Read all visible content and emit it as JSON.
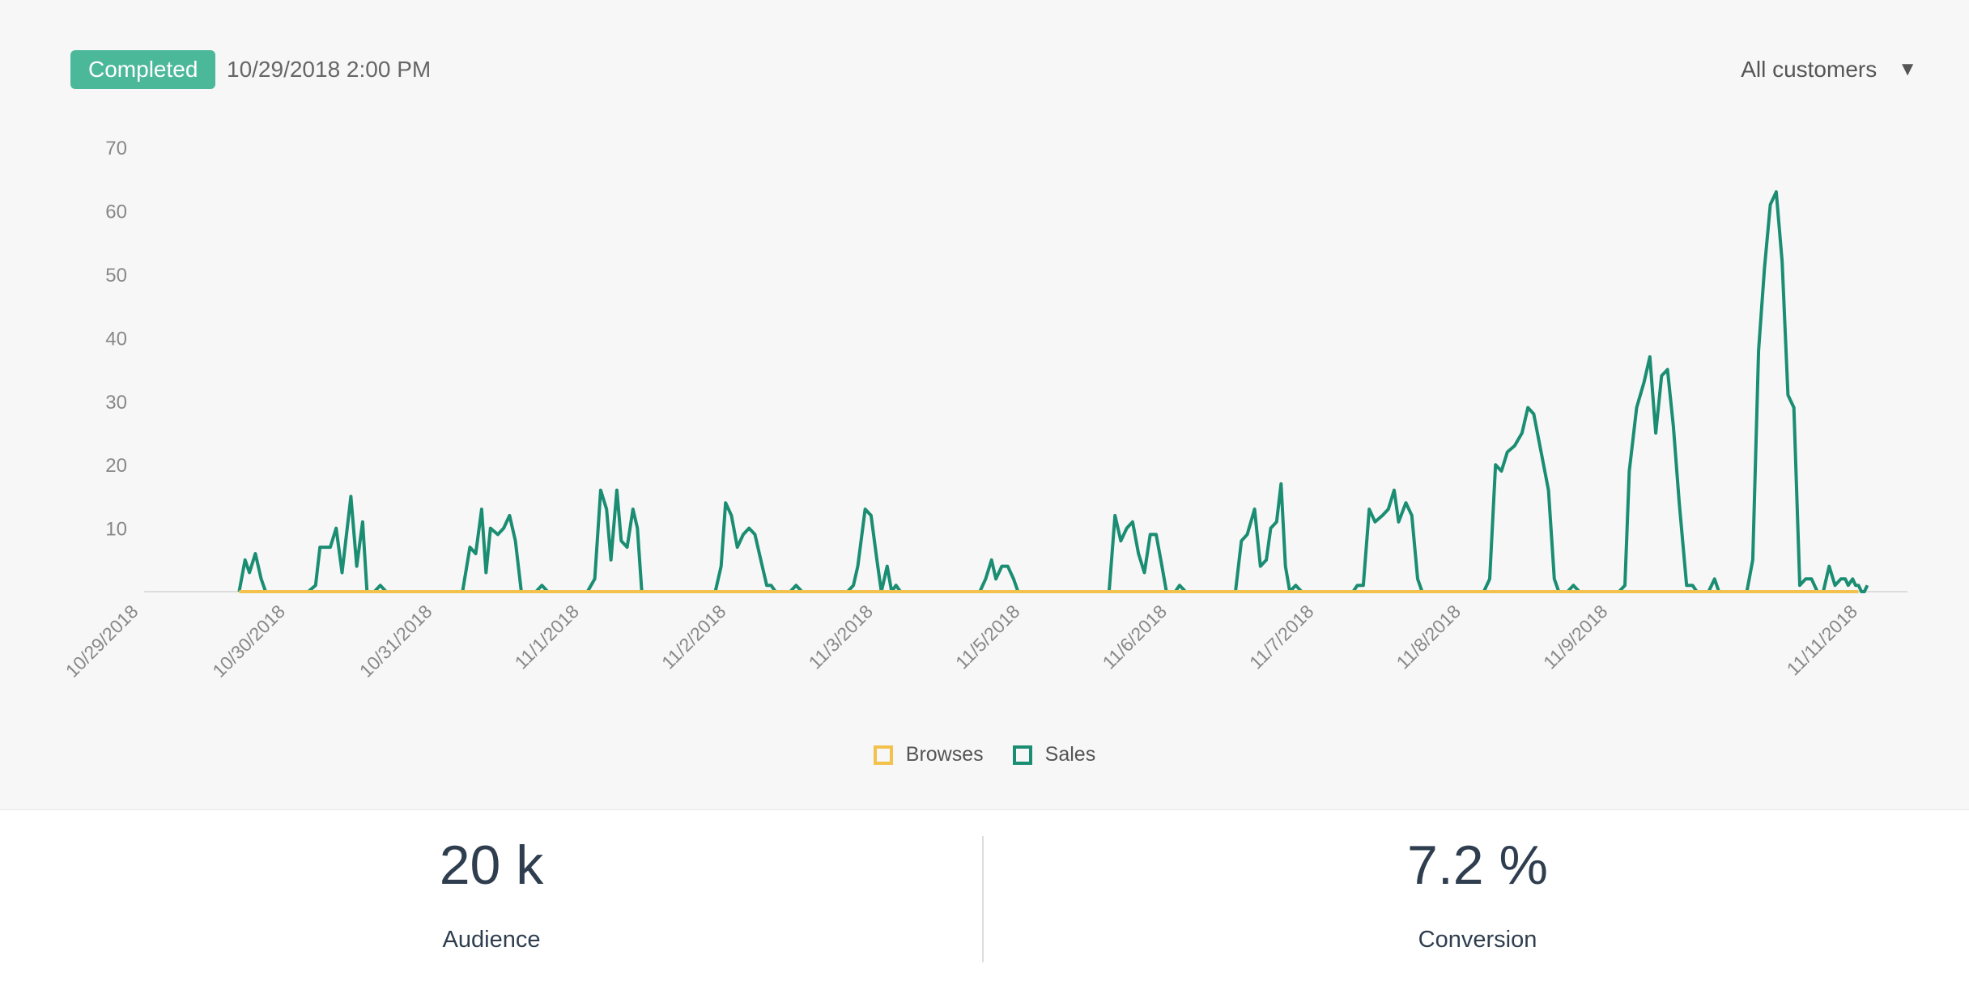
{
  "header": {
    "status": "Completed",
    "timestamp": "10/29/2018 2:00 PM",
    "filter_label": "All customers",
    "filter_caret": "▼"
  },
  "colors": {
    "badge": "#4cb89a",
    "sales": "#1a8d72",
    "browses": "#f2c14e",
    "axis_text": "#888888"
  },
  "chart_data": {
    "type": "line",
    "title": "",
    "xlabel": "",
    "ylabel": "",
    "ylim": [
      0,
      70
    ],
    "yticks": [
      10,
      20,
      30,
      40,
      50,
      60,
      70
    ],
    "x_tick_labels": [
      "10/29/2018",
      "10/30/2018",
      "10/31/2018",
      "11/1/2018",
      "11/2/2018",
      "11/3/2018",
      "11/5/2018",
      "11/6/2018",
      "11/7/2018",
      "11/8/2018",
      "11/9/2018",
      "11/11/2018"
    ],
    "x_tick_positions": [
      0,
      1,
      2,
      3,
      4,
      5,
      6,
      7,
      8,
      9,
      10,
      11.7
    ],
    "grid": false,
    "legend_placement": "bottom-center",
    "series": [
      {
        "name": "Browses",
        "color": "#f2c14e",
        "points": [
          [
            0.68,
            0
          ],
          [
            11.7,
            0
          ]
        ]
      },
      {
        "name": "Sales",
        "color": "#1a8d72",
        "points": [
          [
            0.68,
            0
          ],
          [
            0.72,
            5
          ],
          [
            0.75,
            3
          ],
          [
            0.79,
            6
          ],
          [
            0.83,
            2
          ],
          [
            0.86,
            0
          ],
          [
            1.15,
            0
          ],
          [
            1.2,
            1
          ],
          [
            1.23,
            7
          ],
          [
            1.3,
            7
          ],
          [
            1.34,
            10
          ],
          [
            1.38,
            3
          ],
          [
            1.44,
            15
          ],
          [
            1.48,
            4
          ],
          [
            1.52,
            11
          ],
          [
            1.55,
            0
          ],
          [
            1.6,
            0
          ],
          [
            1.64,
            1
          ],
          [
            1.68,
            0
          ],
          [
            2.2,
            0
          ],
          [
            2.25,
            7
          ],
          [
            2.29,
            6
          ],
          [
            2.33,
            13
          ],
          [
            2.36,
            3
          ],
          [
            2.39,
            10
          ],
          [
            2.44,
            9
          ],
          [
            2.48,
            10
          ],
          [
            2.52,
            12
          ],
          [
            2.56,
            8
          ],
          [
            2.6,
            0
          ],
          [
            2.7,
            0
          ],
          [
            2.74,
            1
          ],
          [
            2.78,
            0
          ],
          [
            3.05,
            0
          ],
          [
            3.1,
            2
          ],
          [
            3.14,
            16
          ],
          [
            3.18,
            13
          ],
          [
            3.21,
            5
          ],
          [
            3.25,
            16
          ],
          [
            3.28,
            8
          ],
          [
            3.32,
            7
          ],
          [
            3.36,
            13
          ],
          [
            3.39,
            10
          ],
          [
            3.42,
            0
          ],
          [
            3.92,
            0
          ],
          [
            3.96,
            4
          ],
          [
            3.99,
            14
          ],
          [
            4.03,
            12
          ],
          [
            4.07,
            7
          ],
          [
            4.11,
            9
          ],
          [
            4.15,
            10
          ],
          [
            4.19,
            9
          ],
          [
            4.23,
            5
          ],
          [
            4.27,
            1
          ],
          [
            4.3,
            1
          ],
          [
            4.33,
            0
          ],
          [
            4.43,
            0
          ],
          [
            4.47,
            1
          ],
          [
            4.51,
            0
          ],
          [
            4.82,
            0
          ],
          [
            4.86,
            1
          ],
          [
            4.89,
            4
          ],
          [
            4.94,
            13
          ],
          [
            4.98,
            12
          ],
          [
            5.02,
            5
          ],
          [
            5.05,
            0
          ],
          [
            5.09,
            4
          ],
          [
            5.12,
            0
          ],
          [
            5.15,
            1
          ],
          [
            5.18,
            0
          ],
          [
            5.72,
            0
          ],
          [
            5.76,
            2
          ],
          [
            5.8,
            5
          ],
          [
            5.83,
            2
          ],
          [
            5.87,
            4
          ],
          [
            5.91,
            4
          ],
          [
            5.95,
            2
          ],
          [
            5.98,
            0
          ],
          [
            6.6,
            0
          ],
          [
            6.64,
            12
          ],
          [
            6.68,
            8
          ],
          [
            6.72,
            10
          ],
          [
            6.76,
            11
          ],
          [
            6.8,
            6
          ],
          [
            6.84,
            3
          ],
          [
            6.88,
            9
          ],
          [
            6.92,
            9
          ],
          [
            6.96,
            4
          ],
          [
            6.99,
            0
          ],
          [
            7.05,
            0
          ],
          [
            7.08,
            1
          ],
          [
            7.12,
            0
          ],
          [
            7.46,
            0
          ],
          [
            7.5,
            8
          ],
          [
            7.54,
            9
          ],
          [
            7.59,
            13
          ],
          [
            7.63,
            4
          ],
          [
            7.67,
            5
          ],
          [
            7.7,
            10
          ],
          [
            7.74,
            11
          ],
          [
            7.77,
            17
          ],
          [
            7.8,
            4
          ],
          [
            7.83,
            0
          ],
          [
            7.87,
            1
          ],
          [
            7.91,
            0
          ],
          [
            8.26,
            0
          ],
          [
            8.29,
            1
          ],
          [
            8.33,
            1
          ],
          [
            8.37,
            13
          ],
          [
            8.41,
            11
          ],
          [
            8.46,
            12
          ],
          [
            8.5,
            13
          ],
          [
            8.54,
            16
          ],
          [
            8.57,
            11
          ],
          [
            8.62,
            14
          ],
          [
            8.66,
            12
          ],
          [
            8.7,
            2
          ],
          [
            8.73,
            0
          ],
          [
            9.15,
            0
          ],
          [
            9.19,
            2
          ],
          [
            9.23,
            20
          ],
          [
            9.27,
            19
          ],
          [
            9.31,
            22
          ],
          [
            9.36,
            23
          ],
          [
            9.41,
            25
          ],
          [
            9.45,
            29
          ],
          [
            9.49,
            28
          ],
          [
            9.54,
            22
          ],
          [
            9.59,
            16
          ],
          [
            9.63,
            2
          ],
          [
            9.66,
            0
          ],
          [
            9.72,
            0
          ],
          [
            9.76,
            1
          ],
          [
            9.8,
            0
          ],
          [
            10.07,
            0
          ],
          [
            10.11,
            1
          ],
          [
            10.14,
            19
          ],
          [
            10.19,
            29
          ],
          [
            10.24,
            33
          ],
          [
            10.28,
            37
          ],
          [
            10.32,
            25
          ],
          [
            10.36,
            34
          ],
          [
            10.4,
            35
          ],
          [
            10.44,
            26
          ],
          [
            10.48,
            14
          ],
          [
            10.53,
            1
          ],
          [
            10.57,
            1
          ],
          [
            10.6,
            0
          ],
          [
            10.68,
            0
          ],
          [
            10.72,
            2
          ],
          [
            10.75,
            0
          ],
          [
            10.94,
            0
          ],
          [
            10.98,
            5
          ],
          [
            11.02,
            38
          ],
          [
            11.06,
            51
          ],
          [
            11.1,
            61
          ],
          [
            11.14,
            63
          ],
          [
            11.18,
            52
          ],
          [
            11.22,
            31
          ],
          [
            11.26,
            29
          ],
          [
            11.3,
            1
          ],
          [
            11.34,
            2
          ],
          [
            11.38,
            2
          ],
          [
            11.42,
            0
          ],
          [
            11.4,
            0
          ],
          [
            11.46,
            0
          ],
          [
            11.5,
            4
          ],
          [
            11.54,
            1
          ],
          [
            11.58,
            2
          ],
          [
            11.61,
            2
          ],
          [
            11.63,
            1
          ],
          [
            11.66,
            2
          ],
          [
            11.68,
            1
          ],
          [
            11.7,
            1
          ],
          [
            11.72,
            0
          ],
          [
            11.74,
            0
          ],
          [
            11.76,
            1
          ]
        ]
      }
    ]
  },
  "legend": [
    {
      "label": "Browses",
      "color": "#f2c14e"
    },
    {
      "label": "Sales",
      "color": "#1a8d72"
    }
  ],
  "stats": [
    {
      "value": "20 k",
      "label": "Audience"
    },
    {
      "value": "7.2 %",
      "label": "Conversion"
    }
  ]
}
